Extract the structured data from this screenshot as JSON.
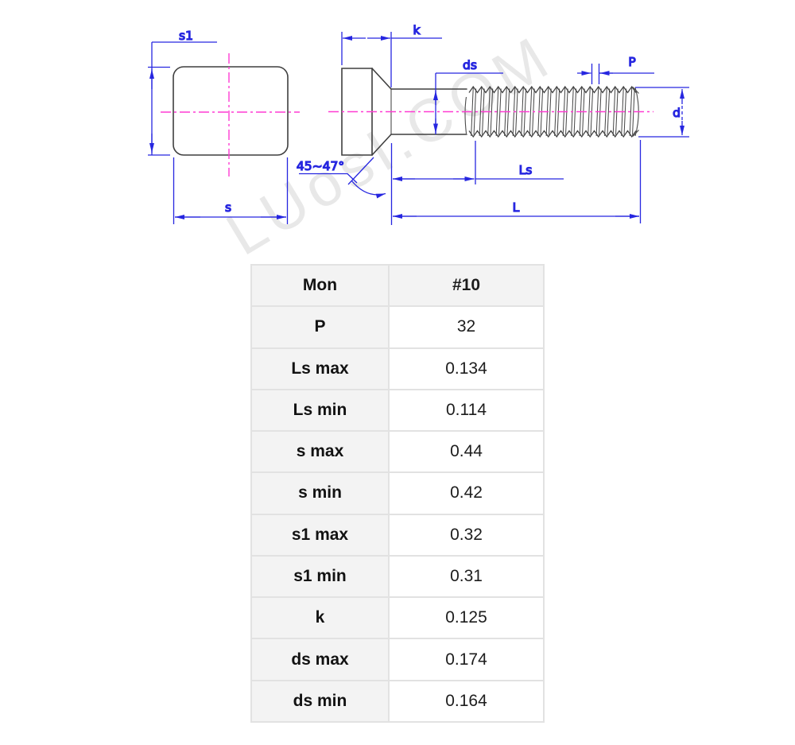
{
  "watermark": {
    "text": "LUosI.COM"
  },
  "diagram": {
    "front_view": {
      "dim_s1": "s1",
      "dim_s": "s"
    },
    "side_view": {
      "dim_k": "k",
      "dim_ds": "ds",
      "dim_p": "P",
      "dim_d": "d",
      "dim_ls": "Ls",
      "dim_l": "L",
      "dim_angle": "45~47°"
    }
  },
  "spec_table": {
    "rows": [
      {
        "label": "Mon",
        "value": "#10"
      },
      {
        "label": "P",
        "value": "32"
      },
      {
        "label": "Ls max",
        "value": "0.134"
      },
      {
        "label": "Ls min",
        "value": "0.114"
      },
      {
        "label": "s max",
        "value": "0.44"
      },
      {
        "label": "s min",
        "value": "0.42"
      },
      {
        "label": "s1 max",
        "value": "0.32"
      },
      {
        "label": "s1 min",
        "value": "0.31"
      },
      {
        "label": "k",
        "value": "0.125"
      },
      {
        "label": "ds max",
        "value": "0.174"
      },
      {
        "label": "ds min",
        "value": "0.164"
      }
    ]
  },
  "colors": {
    "dimension_blue": "#2626e0",
    "centerline_magenta": "#ff3bd3",
    "outline_dark": "#3f3f3f",
    "table_label_bg": "#f3f3f3",
    "table_border": "#e2e2e2"
  }
}
